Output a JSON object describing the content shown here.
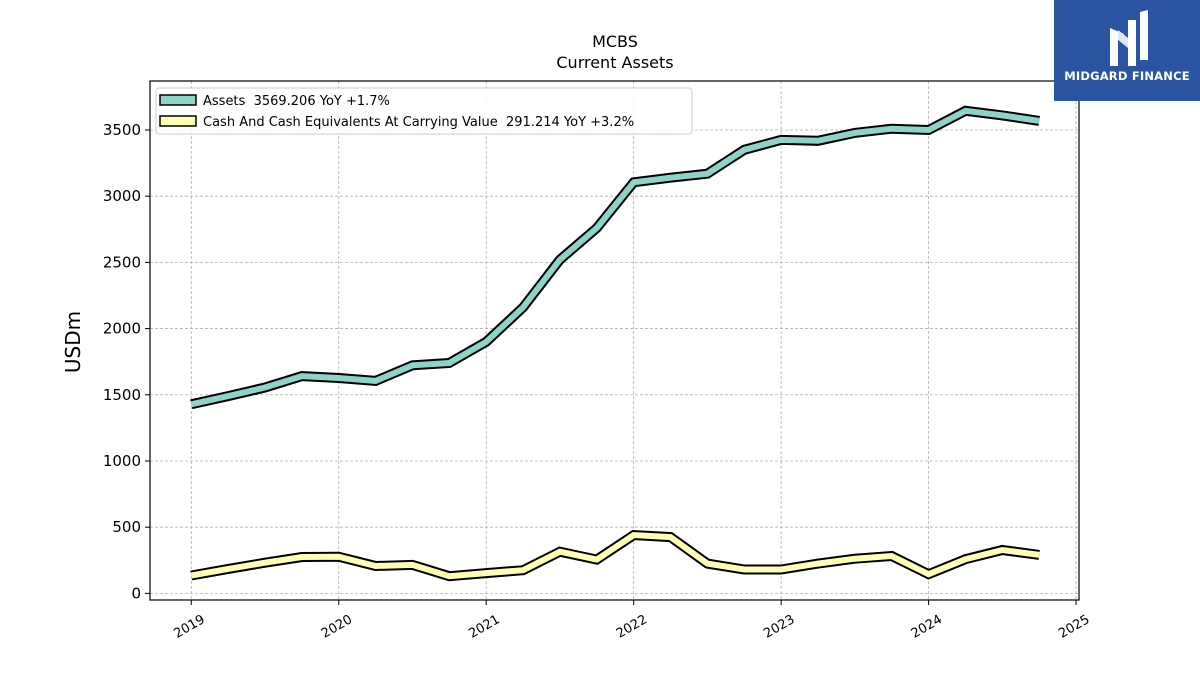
{
  "chart_data": {
    "type": "line",
    "title": "MCBS",
    "subtitle": "Current  Assets",
    "ylabel": "USDm",
    "ylim": [
      -50,
      3870
    ],
    "xlim": [
      2018.72,
      2025.02
    ],
    "yticks": [
      0,
      500,
      1000,
      1500,
      2000,
      2500,
      3000,
      3500
    ],
    "xticks": [
      2019,
      2020,
      2021,
      2022,
      2023,
      2024,
      2025
    ],
    "grid": true,
    "legend_position": "top-left",
    "series": [
      {
        "name": "Assets  3569.206 YoY +1.7%",
        "color": "#8dd3c7",
        "points": [
          [
            2019.0,
            1428
          ],
          [
            2019.25,
            1490
          ],
          [
            2019.5,
            1555
          ],
          [
            2019.75,
            1641
          ],
          [
            2020.0,
            1627
          ],
          [
            2020.25,
            1605
          ],
          [
            2020.5,
            1723
          ],
          [
            2020.75,
            1740
          ],
          [
            2021.0,
            1900
          ],
          [
            2021.25,
            2160
          ],
          [
            2021.5,
            2520
          ],
          [
            2021.75,
            2760
          ],
          [
            2022.0,
            3105
          ],
          [
            2022.25,
            3140
          ],
          [
            2022.5,
            3170
          ],
          [
            2022.75,
            3350
          ],
          [
            2023.0,
            3425
          ],
          [
            2023.25,
            3418
          ],
          [
            2023.5,
            3478
          ],
          [
            2023.75,
            3510
          ],
          [
            2024.0,
            3500
          ],
          [
            2024.25,
            3645
          ],
          [
            2024.5,
            3610
          ],
          [
            2024.75,
            3569
          ]
        ]
      },
      {
        "name": "Cash And Cash Equivalents At Carrying Value  291.214 YoY +3.2%",
        "color": "#ffffb3",
        "points": [
          [
            2019.0,
            135
          ],
          [
            2019.25,
            185
          ],
          [
            2019.5,
            232
          ],
          [
            2019.75,
            275
          ],
          [
            2020.0,
            277
          ],
          [
            2020.25,
            207
          ],
          [
            2020.5,
            215
          ],
          [
            2020.75,
            130
          ],
          [
            2021.0,
            153
          ],
          [
            2021.25,
            175
          ],
          [
            2021.5,
            315
          ],
          [
            2021.75,
            255
          ],
          [
            2022.0,
            440
          ],
          [
            2022.25,
            425
          ],
          [
            2022.5,
            225
          ],
          [
            2022.75,
            180
          ],
          [
            2023.0,
            180
          ],
          [
            2023.25,
            225
          ],
          [
            2023.5,
            262
          ],
          [
            2023.75,
            282
          ],
          [
            2024.0,
            145
          ],
          [
            2024.25,
            258
          ],
          [
            2024.5,
            328
          ],
          [
            2024.75,
            291
          ]
        ]
      }
    ]
  },
  "logo": {
    "text": "MIDGARD FINANCE",
    "background": "#2b55a3"
  }
}
